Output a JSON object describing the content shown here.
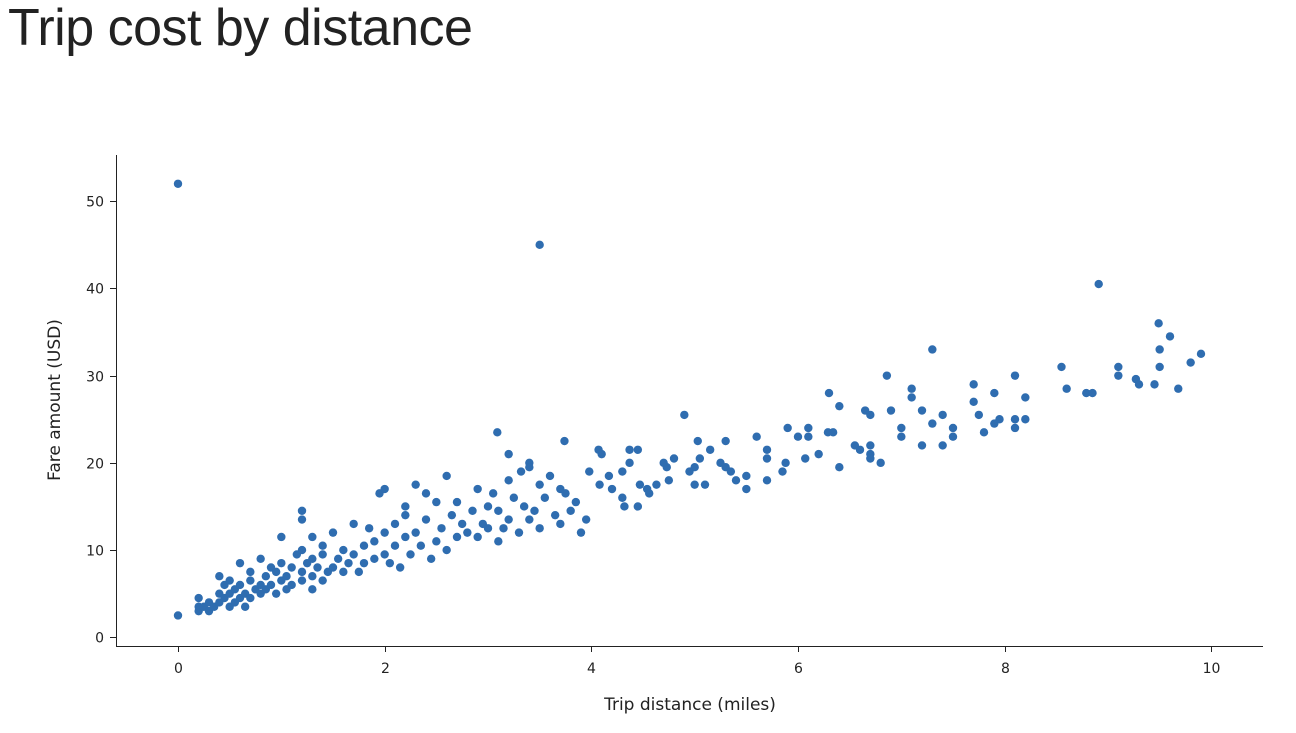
{
  "title": "Trip cost by distance",
  "chart_data": {
    "type": "scatter",
    "title": "Trip cost by distance",
    "xlabel": "Trip distance (miles)",
    "ylabel": "Fare amount (USD)",
    "xlim": [
      -0.6,
      10.5
    ],
    "ylim": [
      -1,
      55.3
    ],
    "xticks": [
      0,
      2,
      4,
      6,
      8,
      10
    ],
    "yticks": [
      0,
      10,
      20,
      30,
      40,
      50
    ],
    "grid": false,
    "color": "#2f6db0",
    "points": [
      [
        0,
        52
      ],
      [
        3.5,
        45
      ],
      [
        8.91,
        40.5
      ],
      [
        9.49,
        36
      ],
      [
        9.6,
        34.5
      ],
      [
        9.5,
        33
      ],
      [
        9.9,
        32.5
      ],
      [
        9.8,
        31.5
      ],
      [
        9.1,
        31
      ],
      [
        9.5,
        31
      ],
      [
        8.55,
        31
      ],
      [
        9.1,
        30
      ],
      [
        9.27,
        29.6
      ],
      [
        9.3,
        29
      ],
      [
        9.45,
        29
      ],
      [
        9.68,
        28.5
      ],
      [
        8.6,
        28.5
      ],
      [
        8.79,
        28
      ],
      [
        8.85,
        28
      ],
      [
        7.3,
        33
      ],
      [
        6.86,
        30
      ],
      [
        7.1,
        28.5
      ],
      [
        7.1,
        27.5
      ],
      [
        6.3,
        28
      ],
      [
        6.4,
        26.5
      ],
      [
        6.65,
        26
      ],
      [
        6.7,
        25.5
      ],
      [
        6.9,
        26
      ],
      [
        7.2,
        26
      ],
      [
        7.3,
        24.5
      ],
      [
        7.4,
        25.5
      ],
      [
        7.7,
        29
      ],
      [
        7.7,
        27
      ],
      [
        7.9,
        28
      ],
      [
        8.1,
        30
      ],
      [
        8.2,
        27.5
      ],
      [
        7.75,
        25.5
      ],
      [
        7.9,
        24.5
      ],
      [
        7.95,
        25
      ],
      [
        8.1,
        25
      ],
      [
        8.2,
        25
      ],
      [
        8.1,
        24
      ],
      [
        7.8,
        23.5
      ],
      [
        7.5,
        24
      ],
      [
        7.5,
        23
      ],
      [
        7.0,
        24
      ],
      [
        7.0,
        23
      ],
      [
        7.2,
        22
      ],
      [
        7.4,
        22
      ],
      [
        6.29,
        23.5
      ],
      [
        6.34,
        23.5
      ],
      [
        6.55,
        22
      ],
      [
        6.6,
        21.5
      ],
      [
        6.7,
        22
      ],
      [
        6.7,
        21
      ],
      [
        6.7,
        20.5
      ],
      [
        6.8,
        20
      ],
      [
        6.4,
        19.5
      ],
      [
        6.2,
        21
      ],
      [
        6.1,
        24
      ],
      [
        5.9,
        24
      ],
      [
        6.1,
        23
      ],
      [
        6.0,
        23
      ],
      [
        5.6,
        23
      ],
      [
        5.7,
        21.5
      ],
      [
        5.7,
        20.5
      ],
      [
        5.7,
        18
      ],
      [
        5.88,
        20
      ],
      [
        5.85,
        19
      ],
      [
        6.07,
        20.5
      ],
      [
        5.3,
        22.5
      ],
      [
        5.25,
        20
      ],
      [
        5.3,
        19.5
      ],
      [
        5.35,
        19
      ],
      [
        5.4,
        18
      ],
      [
        5.5,
        18.5
      ],
      [
        5.5,
        17
      ],
      [
        4.9,
        25.5
      ],
      [
        5.03,
        22.5
      ],
      [
        5.15,
        21.5
      ],
      [
        5.05,
        20.5
      ],
      [
        5.0,
        19.5
      ],
      [
        4.95,
        19
      ],
      [
        5.0,
        17.5
      ],
      [
        5.1,
        17.5
      ],
      [
        4.8,
        20.5
      ],
      [
        4.73,
        19.5
      ],
      [
        4.7,
        20
      ],
      [
        4.75,
        18
      ],
      [
        4.63,
        17.5
      ],
      [
        4.45,
        21.5
      ],
      [
        4.37,
        21.5
      ],
      [
        4.37,
        20
      ],
      [
        4.3,
        19
      ],
      [
        4.07,
        21.5
      ],
      [
        4.1,
        21
      ],
      [
        3.98,
        19
      ],
      [
        4.08,
        17.5
      ],
      [
        4.17,
        18.5
      ],
      [
        4.2,
        17
      ],
      [
        4.3,
        16
      ],
      [
        4.47,
        17.5
      ],
      [
        4.54,
        17
      ],
      [
        4.45,
        15
      ],
      [
        4.32,
        15
      ],
      [
        4.56,
        16.5
      ],
      [
        3.09,
        23.5
      ],
      [
        3.74,
        22.5
      ],
      [
        3.2,
        21
      ],
      [
        3.4,
        20
      ],
      [
        3.32,
        19
      ],
      [
        0,
        2.5
      ],
      [
        0.2,
        3.0
      ],
      [
        0.2,
        3.5
      ],
      [
        0.2,
        4.5
      ],
      [
        0.25,
        3.5
      ],
      [
        0.3,
        3.0
      ],
      [
        0.3,
        4.0
      ],
      [
        0.35,
        3.5
      ],
      [
        0.4,
        4.0
      ],
      [
        0.4,
        5.0
      ],
      [
        0.4,
        7.0
      ],
      [
        0.45,
        4.5
      ],
      [
        0.45,
        6.0
      ],
      [
        0.5,
        3.5
      ],
      [
        0.5,
        5.0
      ],
      [
        0.5,
        6.5
      ],
      [
        0.55,
        4.0
      ],
      [
        0.55,
        5.5
      ],
      [
        0.6,
        4.5
      ],
      [
        0.6,
        6.0
      ],
      [
        0.6,
        8.5
      ],
      [
        0.65,
        3.5
      ],
      [
        0.65,
        5.0
      ],
      [
        0.7,
        4.5
      ],
      [
        0.7,
        6.5
      ],
      [
        0.7,
        7.5
      ],
      [
        0.75,
        5.5
      ],
      [
        0.8,
        5.0
      ],
      [
        0.8,
        6.0
      ],
      [
        0.8,
        9.0
      ],
      [
        0.85,
        5.5
      ],
      [
        0.85,
        7.0
      ],
      [
        0.9,
        6.0
      ],
      [
        0.9,
        8.0
      ],
      [
        0.95,
        5.0
      ],
      [
        0.95,
        7.5
      ],
      [
        1.0,
        6.5
      ],
      [
        1.0,
        8.5
      ],
      [
        1.0,
        11.5
      ],
      [
        1.05,
        5.5
      ],
      [
        1.05,
        7.0
      ],
      [
        1.1,
        6.0
      ],
      [
        1.1,
        8.0
      ],
      [
        1.15,
        9.5
      ],
      [
        1.2,
        6.5
      ],
      [
        1.2,
        7.5
      ],
      [
        1.2,
        10.0
      ],
      [
        1.2,
        13.5
      ],
      [
        1.2,
        14.5
      ],
      [
        1.25,
        8.5
      ],
      [
        1.3,
        5.5
      ],
      [
        1.3,
        7.0
      ],
      [
        1.3,
        9.0
      ],
      [
        1.3,
        11.5
      ],
      [
        1.35,
        8.0
      ],
      [
        1.4,
        6.5
      ],
      [
        1.4,
        9.5
      ],
      [
        1.4,
        10.5
      ],
      [
        1.45,
        7.5
      ],
      [
        1.5,
        8.0
      ],
      [
        1.5,
        12.0
      ],
      [
        1.55,
        9.0
      ],
      [
        1.6,
        7.5
      ],
      [
        1.6,
        10.0
      ],
      [
        1.65,
        8.5
      ],
      [
        1.7,
        9.5
      ],
      [
        1.7,
        13.0
      ],
      [
        1.75,
        7.5
      ],
      [
        1.8,
        10.5
      ],
      [
        1.8,
        8.5
      ],
      [
        1.85,
        12.5
      ],
      [
        1.9,
        9.0
      ],
      [
        1.9,
        11.0
      ],
      [
        1.95,
        16.5
      ],
      [
        2.0,
        9.5
      ],
      [
        2.0,
        17.0
      ],
      [
        2.0,
        12.0
      ],
      [
        2.05,
        8.5
      ],
      [
        2.1,
        10.5
      ],
      [
        2.1,
        13.0
      ],
      [
        2.15,
        8.0
      ],
      [
        2.2,
        11.5
      ],
      [
        2.2,
        14.0
      ],
      [
        2.2,
        15.0
      ],
      [
        2.25,
        9.5
      ],
      [
        2.3,
        12.0
      ],
      [
        2.3,
        17.5
      ],
      [
        2.35,
        10.5
      ],
      [
        2.4,
        13.5
      ],
      [
        2.4,
        16.5
      ],
      [
        2.45,
        9.0
      ],
      [
        2.5,
        11.0
      ],
      [
        2.5,
        15.5
      ],
      [
        2.55,
        12.5
      ],
      [
        2.6,
        10.0
      ],
      [
        2.6,
        18.5
      ],
      [
        2.65,
        14.0
      ],
      [
        2.7,
        11.5
      ],
      [
        2.7,
        15.5
      ],
      [
        2.75,
        13.0
      ],
      [
        2.8,
        12.0
      ],
      [
        2.85,
        14.5
      ],
      [
        2.9,
        11.5
      ],
      [
        2.9,
        17.0
      ],
      [
        2.95,
        13.0
      ],
      [
        3.0,
        15.0
      ],
      [
        3.0,
        12.5
      ],
      [
        3.05,
        16.5
      ],
      [
        3.1,
        11.0
      ],
      [
        3.1,
        14.5
      ],
      [
        3.15,
        12.5
      ],
      [
        3.2,
        13.5
      ],
      [
        3.2,
        18.0
      ],
      [
        3.25,
        16.0
      ],
      [
        3.3,
        12.0
      ],
      [
        3.35,
        15.0
      ],
      [
        3.4,
        19.5
      ],
      [
        3.4,
        13.5
      ],
      [
        3.45,
        14.5
      ],
      [
        3.5,
        17.5
      ],
      [
        3.5,
        12.5
      ],
      [
        3.55,
        16.0
      ],
      [
        3.6,
        18.5
      ],
      [
        3.65,
        14.0
      ],
      [
        3.7,
        13.0
      ],
      [
        3.7,
        17.0
      ],
      [
        3.75,
        16.5
      ],
      [
        3.8,
        14.5
      ],
      [
        3.85,
        15.5
      ],
      [
        3.9,
        12.0
      ],
      [
        3.95,
        13.5
      ]
    ]
  }
}
